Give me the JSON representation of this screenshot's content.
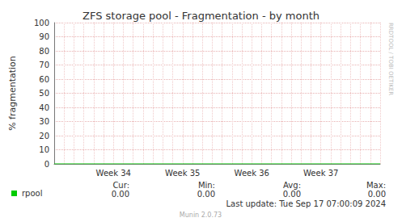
{
  "chart_data": {
    "type": "line",
    "title": "ZFS storage pool - Fragmentation - by month",
    "y_label": "% fragmentation",
    "categories": [
      null,
      null,
      null,
      null,
      null,
      null,
      "Week 34",
      null,
      null,
      null,
      null,
      null,
      null,
      "Week 35",
      null,
      null,
      null,
      null,
      null,
      null,
      "Week 36",
      null,
      null,
      null,
      null,
      null,
      null,
      "Week 37",
      null,
      null,
      null,
      null,
      null,
      null
    ],
    "series": [
      {
        "name": "rpool",
        "color": "#00cc00",
        "values": [
          0,
          0,
          0,
          0,
          0,
          0,
          0,
          0,
          0,
          0,
          0,
          0,
          0,
          0,
          0,
          0,
          0,
          0,
          0,
          0,
          0,
          0,
          0,
          0,
          0,
          0,
          0,
          0,
          0,
          0,
          0,
          0,
          0,
          0
        ]
      }
    ],
    "ylim": [
      0,
      100
    ],
    "yticks": [
      0,
      10,
      20,
      30,
      40,
      50,
      60,
      70,
      80,
      90,
      100
    ],
    "grid": true,
    "stats": [
      {
        "name": "Cur:",
        "value": 0,
        "label": "0.00"
      },
      {
        "name": "Min:",
        "value": 0,
        "label": "0.00"
      },
      {
        "name": "Avg:",
        "value": 0,
        "label": "0.00"
      },
      {
        "name": "Max:",
        "value": 0,
        "label": "0.00"
      }
    ],
    "footer": "Last update: Tue Sep 17 07:00:09 2024",
    "credit": "Munin 2.0.73",
    "watermark": "RRDTOOL / TOBI OETIKER"
  }
}
